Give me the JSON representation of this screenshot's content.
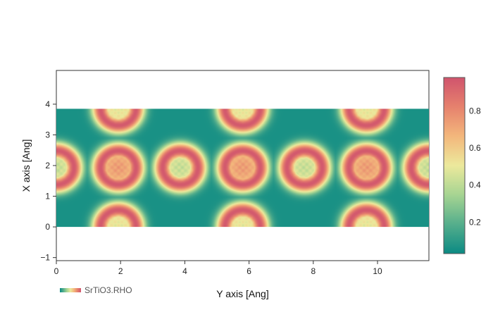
{
  "chart_data": {
    "type": "heatmap",
    "title": "",
    "xlabel": "Y axis [Ang]",
    "ylabel": "X axis [Ang]",
    "xlim": [
      0,
      11.6
    ],
    "ylim": [
      -1.1,
      5.1
    ],
    "data_extent": {
      "x": [
        0,
        11.6
      ],
      "y": [
        0,
        3.85
      ]
    },
    "x_ticks": [
      0,
      2,
      4,
      6,
      8,
      10
    ],
    "y_ticks": [
      -1,
      0,
      1,
      2,
      3,
      4
    ],
    "colorbar": {
      "range": [
        0.03,
        0.98
      ],
      "ticks": [
        0.2,
        0.4,
        0.6,
        0.8
      ],
      "colorscale": [
        "#0b8a83",
        "#55ae8c",
        "#a6d492",
        "#ece99c",
        "#f3b77c",
        "#e6816d",
        "#d0546d"
      ]
    },
    "density_centers": [
      {
        "y_ang": 0.0,
        "x_ang": 1.93,
        "kind": "ring"
      },
      {
        "y_ang": 1.93,
        "x_ang": 1.93,
        "kind": "dense"
      },
      {
        "y_ang": 3.86,
        "x_ang": 1.93,
        "kind": "ring"
      },
      {
        "y_ang": 5.8,
        "x_ang": 1.93,
        "kind": "dense"
      },
      {
        "y_ang": 7.73,
        "x_ang": 1.93,
        "kind": "ring"
      },
      {
        "y_ang": 9.66,
        "x_ang": 1.93,
        "kind": "dense"
      },
      {
        "y_ang": 11.6,
        "x_ang": 1.93,
        "kind": "ring"
      },
      {
        "y_ang": 1.93,
        "x_ang": 0.0,
        "kind": "small"
      },
      {
        "y_ang": 5.8,
        "x_ang": 0.0,
        "kind": "small"
      },
      {
        "y_ang": 9.66,
        "x_ang": 0.0,
        "kind": "small"
      },
      {
        "y_ang": 1.93,
        "x_ang": 3.86,
        "kind": "small"
      },
      {
        "y_ang": 5.8,
        "x_ang": 3.86,
        "kind": "small"
      },
      {
        "y_ang": 9.66,
        "x_ang": 3.86,
        "kind": "small"
      }
    ],
    "legend": {
      "entries": [
        "SrTiO3.RHO"
      ],
      "placement": "bottom-left"
    },
    "grid": false
  }
}
